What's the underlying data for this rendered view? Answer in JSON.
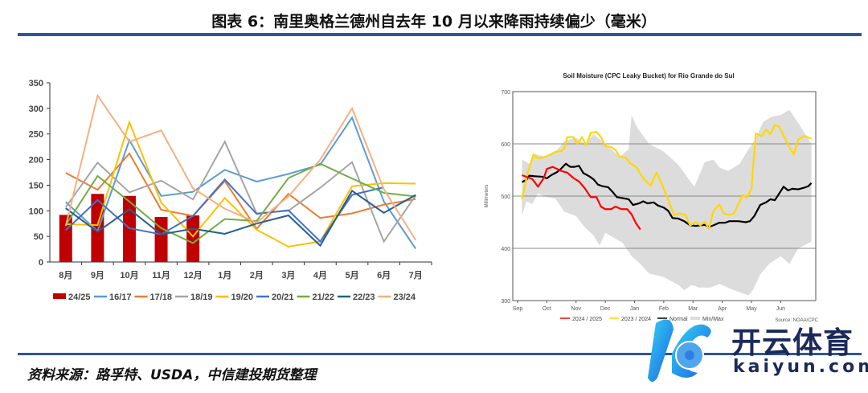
{
  "header": {
    "title": "图表 6：南里奥格兰德州自去年 10 月以来降雨持续偏少（毫米）"
  },
  "footer": {
    "source": "资料来源：路孚特、USDA，中信建投期货整理"
  },
  "watermark": {
    "text_cn": "开云体育",
    "text_en": "kaiyun.com"
  },
  "chart_data": [
    {
      "type": "bar+line",
      "title": "",
      "categories": [
        "8月",
        "9月",
        "10月",
        "11月",
        "12月",
        "1月",
        "2月",
        "3月",
        "4月",
        "5月",
        "6月",
        "7月"
      ],
      "ylim": [
        0,
        350
      ],
      "yticks": [
        0,
        50,
        100,
        150,
        200,
        250,
        300,
        350
      ],
      "legend_position": "bottom",
      "bar_series": {
        "name": "24/25",
        "color": "#c00000",
        "values": [
          92,
          133,
          129,
          88,
          91
        ]
      },
      "series": [
        {
          "name": "16/17",
          "color": "#5b9bd5",
          "values": [
            117,
            60,
            238,
            129,
            137,
            180,
            157,
            172,
            190,
            282,
            118,
            26
          ]
        },
        {
          "name": "17/18",
          "color": "#ed7d31",
          "values": [
            174,
            141,
            212,
            102,
            90,
            158,
            65,
            133,
            86,
            95,
            112,
            123
          ]
        },
        {
          "name": "18/19",
          "color": "#a5a5a5",
          "values": [
            107,
            194,
            136,
            159,
            122,
            235,
            95,
            100,
            145,
            195,
            40,
            130
          ]
        },
        {
          "name": "19/20",
          "color": "#ffc000",
          "values": [
            74,
            72,
            273,
            116,
            50,
            125,
            63,
            30,
            40,
            148,
            154,
            153
          ]
        },
        {
          "name": "20/21",
          "color": "#4472c4",
          "values": [
            62,
            121,
            66,
            54,
            90,
            161,
            94,
            101,
            40,
            131,
            146,
            null
          ]
        },
        {
          "name": "21/22",
          "color": "#70ad47",
          "values": [
            72,
            168,
            118,
            66,
            37,
            84,
            80,
            164,
            192,
            163,
            135,
            128
          ]
        },
        {
          "name": "22/23",
          "color": "#255e91",
          "values": [
            105,
            59,
            103,
            54,
            65,
            55,
            75,
            91,
            32,
            139,
            96,
            131
          ]
        },
        {
          "name": "23/24",
          "color": "#f4b183",
          "values": [
            70,
            325,
            235,
            257,
            144,
            104,
            77,
            128,
            200,
            300,
            142,
            43
          ]
        }
      ]
    },
    {
      "type": "line",
      "title": "Soil Moisture (CPC Leaky Bucket) for Rio Grande do Sul",
      "ylabel": "Millimeters",
      "xlabel": "",
      "x_unit": "months since Sep 1",
      "xlim": [
        0,
        10.2
      ],
      "ylim": [
        300,
        700
      ],
      "yticks": [
        300,
        400,
        500,
        600,
        700
      ],
      "gridlines": [
        400,
        500,
        600
      ],
      "xticks": [
        "Sep",
        "Oct",
        "Nov",
        "Dec",
        "Jan",
        "Feb",
        "Mar",
        "Apr",
        "May",
        "Jun"
      ],
      "source": "Source: NOAA/CPC",
      "legend_position": "bottom",
      "band": {
        "name": "Min/Max",
        "color": "#dcdcdc",
        "upper": [
          [
            0.15,
            570
          ],
          [
            0.4,
            562
          ],
          [
            0.6,
            580
          ],
          [
            1.0,
            575
          ],
          [
            1.3,
            585
          ],
          [
            1.6,
            605
          ],
          [
            2.0,
            612
          ],
          [
            2.3,
            600
          ],
          [
            2.6,
            618
          ],
          [
            3.0,
            600
          ],
          [
            3.5,
            575
          ],
          [
            3.8,
            590
          ],
          [
            3.9,
            655
          ],
          [
            4.1,
            630
          ],
          [
            4.5,
            600
          ],
          [
            5.0,
            585
          ],
          [
            5.5,
            560
          ],
          [
            5.95,
            525
          ],
          [
            6.05,
            518
          ],
          [
            6.4,
            565
          ],
          [
            6.7,
            570
          ],
          [
            6.9,
            555
          ],
          [
            7.2,
            548
          ],
          [
            7.6,
            562
          ],
          [
            7.9,
            590
          ],
          [
            8.1,
            605
          ],
          [
            8.4,
            642
          ],
          [
            8.7,
            652
          ],
          [
            9.0,
            655
          ],
          [
            9.3,
            665
          ],
          [
            9.6,
            640
          ],
          [
            10.05,
            600
          ]
        ],
        "lower": [
          [
            0.15,
            462
          ],
          [
            0.3,
            490
          ],
          [
            0.5,
            485
          ],
          [
            0.7,
            505
          ],
          [
            1.0,
            498
          ],
          [
            1.3,
            495
          ],
          [
            1.6,
            470
          ],
          [
            2.0,
            462
          ],
          [
            2.3,
            440
          ],
          [
            2.6,
            425
          ],
          [
            2.8,
            405
          ],
          [
            3.0,
            430
          ],
          [
            3.3,
            420
          ],
          [
            3.6,
            410
          ],
          [
            3.9,
            385
          ],
          [
            4.2,
            370
          ],
          [
            4.5,
            352
          ],
          [
            5.0,
            345
          ],
          [
            5.5,
            330
          ],
          [
            5.7,
            320
          ],
          [
            5.95,
            330
          ],
          [
            6.2,
            325
          ],
          [
            6.6,
            325
          ],
          [
            6.9,
            332
          ],
          [
            7.4,
            320
          ],
          [
            7.9,
            310
          ],
          [
            8.05,
            320
          ],
          [
            8.3,
            350
          ],
          [
            8.6,
            370
          ],
          [
            9.0,
            385
          ],
          [
            9.3,
            370
          ],
          [
            9.6,
            400
          ],
          [
            10.05,
            413
          ]
        ]
      },
      "series": [
        {
          "name": "2024 / 2025",
          "color": "#ff0000",
          "points": [
            [
              0.15,
              540
            ],
            [
              0.4,
              535
            ],
            [
              0.5,
              533
            ],
            [
              0.7,
              518
            ],
            [
              0.9,
              535
            ],
            [
              1.0,
              552
            ],
            [
              1.2,
              556
            ],
            [
              1.5,
              548
            ],
            [
              1.7,
              545
            ],
            [
              1.9,
              535
            ],
            [
              2.1,
              528
            ],
            [
              2.3,
              515
            ],
            [
              2.5,
              498
            ],
            [
              2.7,
              498
            ],
            [
              2.85,
              480
            ],
            [
              3.0,
              475
            ],
            [
              3.2,
              475
            ],
            [
              3.35,
              480
            ],
            [
              3.55,
              475
            ],
            [
              3.75,
              475
            ],
            [
              3.9,
              465
            ],
            [
              4.05,
              448
            ],
            [
              4.2,
              436
            ]
          ]
        },
        {
          "name": "2023 / 2024",
          "color": "#ffd700",
          "points": [
            [
              0.15,
              494
            ],
            [
              0.35,
              545
            ],
            [
              0.55,
              580
            ],
            [
              0.7,
              572
            ],
            [
              0.9,
              574
            ],
            [
              1.1,
              579
            ],
            [
              1.3,
              585
            ],
            [
              1.5,
              586
            ],
            [
              1.6,
              592
            ],
            [
              1.7,
              613
            ],
            [
              1.9,
              613
            ],
            [
              2.05,
              600
            ],
            [
              2.2,
              613
            ],
            [
              2.35,
              597
            ],
            [
              2.5,
              621
            ],
            [
              2.7,
              623
            ],
            [
              2.85,
              613
            ],
            [
              3.0,
              596
            ],
            [
              3.2,
              594
            ],
            [
              3.35,
              588
            ],
            [
              3.5,
              575
            ],
            [
              3.7,
              574
            ],
            [
              3.85,
              563
            ],
            [
              4.05,
              556
            ],
            [
              4.25,
              538
            ],
            [
              4.45,
              525
            ],
            [
              4.55,
              520
            ],
            [
              4.75,
              545
            ],
            [
              4.9,
              528
            ],
            [
              5.1,
              500
            ],
            [
              5.35,
              464
            ],
            [
              5.55,
              467
            ],
            [
              5.75,
              464
            ],
            [
              5.9,
              444
            ],
            [
              6.1,
              450
            ],
            [
              6.25,
              444
            ],
            [
              6.4,
              451
            ],
            [
              6.55,
              437
            ],
            [
              6.7,
              472
            ],
            [
              6.9,
              484
            ],
            [
              7.05,
              467
            ],
            [
              7.25,
              464
            ],
            [
              7.4,
              467
            ],
            [
              7.7,
              502
            ],
            [
              7.85,
              497
            ],
            [
              8.0,
              514
            ],
            [
              8.15,
              620
            ],
            [
              8.35,
              615
            ],
            [
              8.5,
              627
            ],
            [
              8.65,
              619
            ],
            [
              8.8,
              636
            ],
            [
              8.95,
              633
            ],
            [
              9.15,
              610
            ],
            [
              9.3,
              593
            ],
            [
              9.45,
              580
            ],
            [
              9.6,
              608
            ],
            [
              9.8,
              615
            ],
            [
              10.05,
              610
            ]
          ]
        },
        {
          "name": "Normal",
          "color": "#000000",
          "points": [
            [
              0.15,
              527
            ],
            [
              0.3,
              531
            ],
            [
              0.4,
              539
            ],
            [
              0.6,
              538
            ],
            [
              0.85,
              537
            ],
            [
              1.0,
              534
            ],
            [
              1.15,
              540
            ],
            [
              1.35,
              546
            ],
            [
              1.5,
              553
            ],
            [
              1.65,
              562
            ],
            [
              1.8,
              556
            ],
            [
              1.95,
              556
            ],
            [
              2.1,
              558
            ],
            [
              2.25,
              544
            ],
            [
              2.45,
              538
            ],
            [
              2.6,
              532
            ],
            [
              2.75,
              522
            ],
            [
              2.9,
              519
            ],
            [
              3.1,
              517
            ],
            [
              3.25,
              508
            ],
            [
              3.4,
              498
            ],
            [
              3.6,
              496
            ],
            [
              3.8,
              494
            ],
            [
              3.95,
              483
            ],
            [
              4.15,
              486
            ],
            [
              4.3,
              490
            ],
            [
              4.45,
              486
            ],
            [
              4.65,
              488
            ],
            [
              4.8,
              482
            ],
            [
              5.0,
              478
            ],
            [
              5.15,
              472
            ],
            [
              5.3,
              458
            ],
            [
              5.5,
              457
            ],
            [
              5.7,
              452
            ],
            [
              5.9,
              444
            ],
            [
              6.1,
              443
            ],
            [
              6.4,
              445
            ],
            [
              6.55,
              441
            ],
            [
              6.7,
              444
            ],
            [
              6.9,
              449
            ],
            [
              7.1,
              449
            ],
            [
              7.25,
              452
            ],
            [
              7.55,
              452
            ],
            [
              7.8,
              450
            ],
            [
              7.95,
              452
            ],
            [
              8.1,
              462
            ],
            [
              8.3,
              483
            ],
            [
              8.5,
              488
            ],
            [
              8.65,
              494
            ],
            [
              8.8,
              492
            ],
            [
              8.95,
              505
            ],
            [
              9.1,
              518
            ],
            [
              9.25,
              511
            ],
            [
              9.4,
              514
            ],
            [
              9.6,
              513
            ],
            [
              9.8,
              516
            ],
            [
              9.95,
              519
            ],
            [
              10.05,
              525
            ]
          ]
        }
      ]
    }
  ]
}
